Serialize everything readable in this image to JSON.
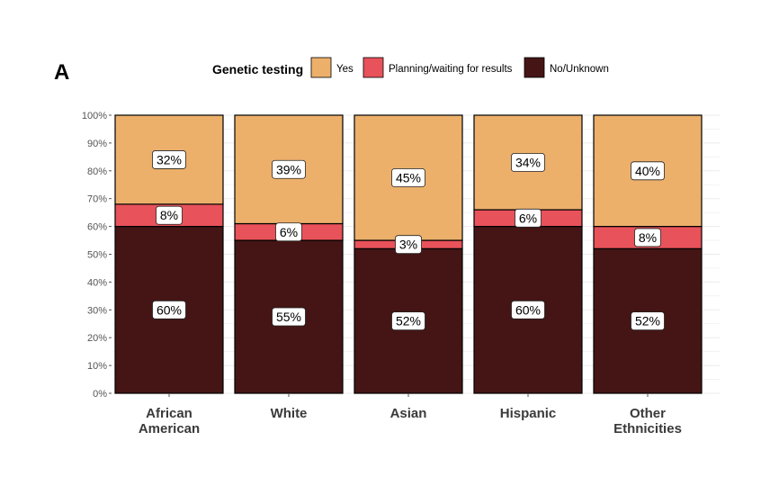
{
  "panel_label": "A",
  "colors": {
    "yes": "#ecb06b",
    "planning": "#e8525a",
    "no": "#451515",
    "grid": "#ebebeb"
  },
  "chart_data": {
    "type": "bar",
    "stacked": true,
    "legend_title": "Genetic testing",
    "legend_position": "top",
    "categories": [
      [
        "African",
        "American"
      ],
      [
        "White"
      ],
      [
        "Asian"
      ],
      [
        "Hispanic"
      ],
      [
        "Other",
        "Ethnicities"
      ]
    ],
    "series": [
      {
        "key": "no",
        "name": "No/Unknown",
        "values": [
          60,
          55,
          52,
          60,
          52
        ],
        "labels": [
          "60%",
          "55%",
          "52%",
          "60%",
          "52%"
        ]
      },
      {
        "key": "planning",
        "name": "Planning/waiting for results",
        "values": [
          8,
          6,
          3,
          6,
          8
        ],
        "labels": [
          "8%",
          "6%",
          "3%",
          "6%",
          "8%"
        ]
      },
      {
        "key": "yes",
        "name": "Yes",
        "values": [
          32,
          39,
          45,
          34,
          40
        ],
        "labels": [
          "32%",
          "39%",
          "45%",
          "34%",
          "40%"
        ]
      }
    ],
    "legend_order": [
      "yes",
      "planning",
      "no"
    ],
    "ylim": [
      0,
      100
    ],
    "yticks": [
      0,
      10,
      20,
      30,
      40,
      50,
      60,
      70,
      80,
      90,
      100
    ],
    "ytick_labels": [
      "0%",
      "10%",
      "20%",
      "30%",
      "40%",
      "50%",
      "60%",
      "70%",
      "80%",
      "90%",
      "100%"
    ],
    "xlabel": "",
    "ylabel": "",
    "grid": true
  }
}
